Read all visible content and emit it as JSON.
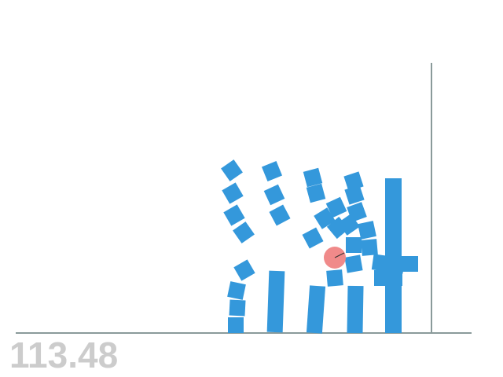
{
  "hud": {
    "score": "113.48"
  },
  "colors": {
    "background": "#ffffff",
    "ground": "#8a9a9a",
    "block": "#3498db",
    "ball": "#f08a8a",
    "score_text": "#cccccc"
  }
}
